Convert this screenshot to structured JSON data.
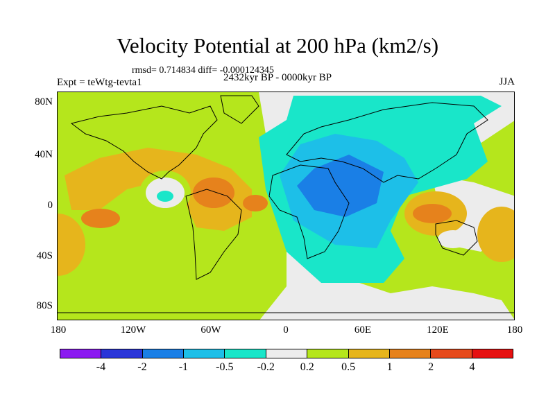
{
  "title": "Velocity Potential at 200 hPa (km2/s)",
  "stats": "rmsd= 0.714834 diff= -0.000124345",
  "experiment": "Expt = teWtg-tevta1",
  "period": "2432kyr BP - 0000kyr BP",
  "season": "JJA",
  "lat_labels": [
    "80N",
    "40N",
    "0",
    "40S",
    "80S"
  ],
  "lon_labels": [
    "180",
    "120W",
    "60W",
    "0",
    "60E",
    "120E",
    "180"
  ],
  "colorbar": {
    "colors": [
      "#8b1af0",
      "#2a35d8",
      "#1a7fe6",
      "#1dbfe8",
      "#19e6c9",
      "#ececec",
      "#b5e61c",
      "#e6b51c",
      "#e6821c",
      "#e64a1c",
      "#e61010"
    ],
    "labels": [
      "-4",
      "-2",
      "-1",
      "-0.5",
      "-0.2",
      "0.2",
      "0.5",
      "1",
      "2",
      "4"
    ]
  }
}
